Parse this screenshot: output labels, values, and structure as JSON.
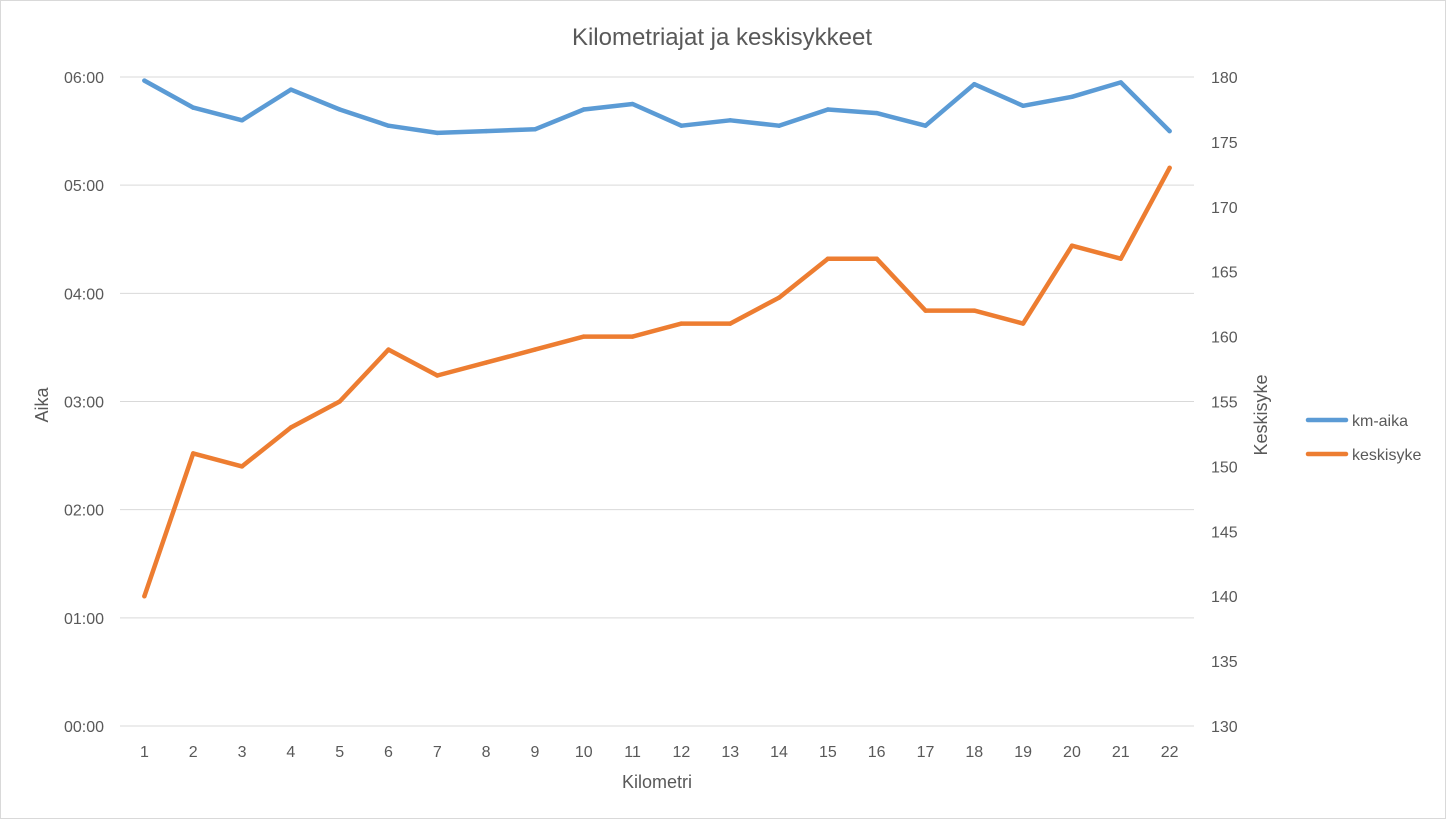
{
  "chart_data": {
    "type": "line",
    "title": "Kilometriajat ja keskisykkeet",
    "xlabel": "Kilometri",
    "ylabel": "Aika",
    "y2label": "Keskisyke",
    "categories": [
      "1",
      "2",
      "3",
      "4",
      "5",
      "6",
      "7",
      "8",
      "9",
      "10",
      "11",
      "12",
      "13",
      "14",
      "15",
      "16",
      "17",
      "18",
      "19",
      "20",
      "21",
      "22"
    ],
    "y_ticks": [
      "00:00",
      "01:00",
      "02:00",
      "03:00",
      "04:00",
      "05:00",
      "06:00"
    ],
    "y_range_seconds": [
      0,
      360
    ],
    "y2_ticks": [
      "130",
      "135",
      "140",
      "145",
      "150",
      "155",
      "160",
      "165",
      "170",
      "175",
      "180"
    ],
    "y2_range": [
      130,
      180
    ],
    "grid": true,
    "legend_position": "right",
    "series": [
      {
        "name": "km-aika",
        "axis": "left",
        "color": "#5b9bd5",
        "values": [
          "05:58",
          "05:43",
          "05:36",
          "05:53",
          "05:42",
          "05:33",
          "05:29",
          "05:30",
          "05:31",
          "05:42",
          "05:45",
          "05:33",
          "05:36",
          "05:33",
          "05:42",
          "05:40",
          "05:33",
          "05:56",
          "05:44",
          "05:49",
          "05:57",
          "05:30"
        ]
      },
      {
        "name": "keskisyke",
        "axis": "right",
        "color": "#ed7d31",
        "values": [
          140,
          151,
          150,
          153,
          155,
          159,
          157,
          158,
          159,
          160,
          160,
          161,
          161,
          163,
          166,
          166,
          162,
          162,
          161,
          167,
          166,
          173
        ]
      }
    ]
  }
}
